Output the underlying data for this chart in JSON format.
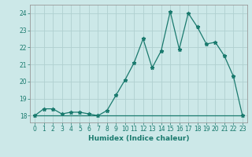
{
  "xlabel": "Humidex (Indice chaleur)",
  "x": [
    0,
    1,
    2,
    3,
    4,
    5,
    6,
    7,
    8,
    9,
    10,
    11,
    12,
    13,
    14,
    15,
    16,
    17,
    18,
    19,
    20,
    21,
    22,
    23
  ],
  "y_line": [
    18.0,
    18.4,
    18.4,
    18.1,
    18.2,
    18.2,
    18.1,
    18.0,
    18.3,
    19.2,
    20.1,
    21.1,
    22.5,
    20.8,
    21.8,
    24.1,
    21.9,
    24.0,
    23.2,
    22.2,
    22.3,
    21.5,
    20.3,
    18.0
  ],
  "y_flat": [
    18,
    18,
    18,
    18,
    18,
    18,
    18,
    18,
    18,
    18,
    18,
    18,
    18,
    18,
    18,
    18,
    18,
    18,
    18,
    18,
    18,
    18,
    18,
    18
  ],
  "line_color": "#1a7a6e",
  "bg_color": "#cce8e8",
  "grid_color": "#b0d0d0",
  "xlim": [
    -0.5,
    23.5
  ],
  "ylim": [
    17.6,
    24.5
  ],
  "yticks": [
    18,
    19,
    20,
    21,
    22,
    23,
    24
  ],
  "xticks": [
    0,
    1,
    2,
    3,
    4,
    5,
    6,
    7,
    8,
    9,
    10,
    11,
    12,
    13,
    14,
    15,
    16,
    17,
    18,
    19,
    20,
    21,
    22,
    23
  ],
  "marker": "*",
  "markersize": 3.5,
  "linewidth": 0.9,
  "tick_fontsize": 5.5,
  "xlabel_fontsize": 6.5
}
